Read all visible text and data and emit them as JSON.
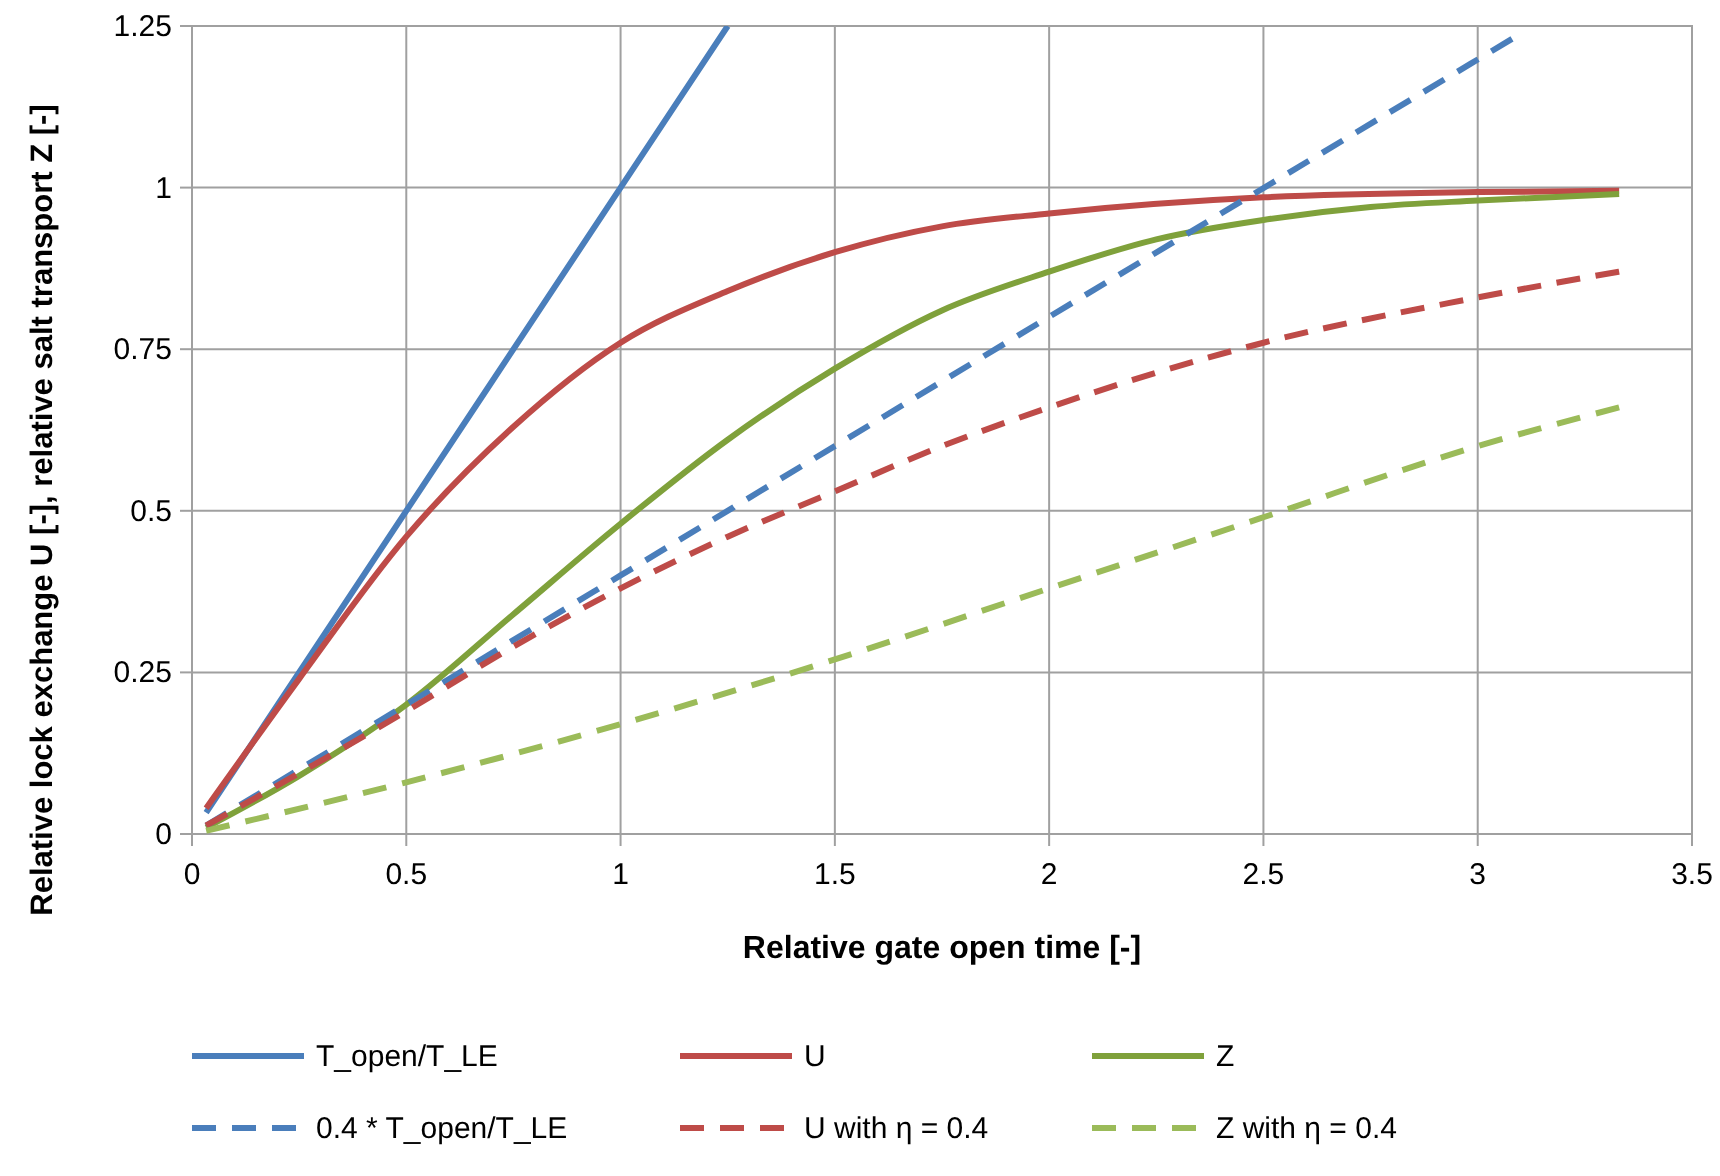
{
  "chart_data": {
    "type": "line",
    "xlabel": "Relative gate open time [-]",
    "ylabel": "Relative lock exchange U [-], relative salt transport Z [-]",
    "xlim": [
      0,
      3.5
    ],
    "ylim": [
      0,
      1.25
    ],
    "xticks": [
      0,
      0.5,
      1,
      1.5,
      2,
      2.5,
      3,
      3.5
    ],
    "yticks": [
      0,
      0.25,
      0.5,
      0.75,
      1,
      1.25
    ],
    "grid": true,
    "legend": "bottom",
    "series": [
      {
        "name": "T_open/T_LE",
        "color": "#4a7ebb",
        "line_style": "solid",
        "x": [
          0.033,
          0.5,
          1,
          1.25
        ],
        "values": [
          0.033,
          0.5,
          1,
          1.25
        ]
      },
      {
        "name": "U",
        "color": "#be4b48",
        "line_style": "solid",
        "x": [
          0.033,
          0.25,
          0.5,
          0.75,
          1,
          1.25,
          1.5,
          1.75,
          2,
          2.5,
          3,
          3.33
        ],
        "values": [
          0.04,
          0.24,
          0.46,
          0.63,
          0.76,
          0.84,
          0.9,
          0.94,
          0.96,
          0.985,
          0.993,
          0.995
        ]
      },
      {
        "name": "Z",
        "color": "#7fa13b",
        "line_style": "solid",
        "x": [
          0.033,
          0.25,
          0.5,
          0.75,
          1,
          1.25,
          1.5,
          1.75,
          2,
          2.25,
          2.5,
          2.75,
          3,
          3.33
        ],
        "values": [
          0.01,
          0.09,
          0.2,
          0.34,
          0.48,
          0.61,
          0.72,
          0.81,
          0.87,
          0.92,
          0.95,
          0.97,
          0.98,
          0.99
        ]
      },
      {
        "name": "0.4 * T_open/T_LE",
        "color": "#4a7ebb",
        "line_style": "dashed",
        "x": [
          0.033,
          1,
          2,
          3.08
        ],
        "values": [
          0.013,
          0.4,
          0.8,
          1.23
        ]
      },
      {
        "name": "U with η = 0.4",
        "color": "#be4b48",
        "line_style": "dashed",
        "x": [
          0.033,
          0.5,
          0.75,
          1,
          1.25,
          1.5,
          1.75,
          2,
          2.5,
          3,
          3.33
        ],
        "values": [
          0.013,
          0.19,
          0.29,
          0.38,
          0.46,
          0.53,
          0.6,
          0.66,
          0.76,
          0.83,
          0.87
        ]
      },
      {
        "name": "Z with η = 0.4",
        "color": "#9bbb59",
        "line_style": "dashed",
        "x": [
          0.033,
          0.5,
          1,
          1.5,
          2,
          2.5,
          3,
          3.33
        ],
        "values": [
          0.005,
          0.08,
          0.17,
          0.27,
          0.38,
          0.49,
          0.6,
          0.66
        ]
      }
    ]
  }
}
